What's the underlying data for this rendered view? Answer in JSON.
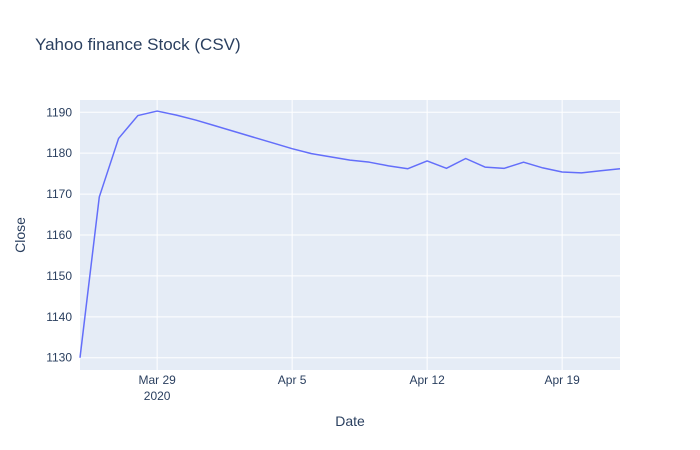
{
  "chart_data": {
    "type": "line",
    "title": "Yahoo finance Stock (CSV)",
    "xlabel": "Date",
    "ylabel": "Close",
    "grid": true,
    "xlim": [
      "2020-03-25",
      "2020-04-22"
    ],
    "ylim": [
      1127,
      1193
    ],
    "x_ticks": [
      {
        "date": "2020-03-29",
        "label": "Mar 29",
        "sublabel": "2020"
      },
      {
        "date": "2020-04-05",
        "label": "Apr 5",
        "sublabel": ""
      },
      {
        "date": "2020-04-12",
        "label": "Apr 12",
        "sublabel": ""
      },
      {
        "date": "2020-04-19",
        "label": "Apr 19",
        "sublabel": ""
      }
    ],
    "y_ticks": [
      1130,
      1140,
      1150,
      1160,
      1170,
      1180,
      1190
    ],
    "series": [
      {
        "color": "#636efa",
        "x": [
          "2020-03-25",
          "2020-03-26",
          "2020-03-27",
          "2020-03-28",
          "2020-03-29",
          "2020-03-30",
          "2020-03-31",
          "2020-04-01",
          "2020-04-02",
          "2020-04-03",
          "2020-04-04",
          "2020-04-05",
          "2020-04-06",
          "2020-04-07",
          "2020-04-08",
          "2020-04-09",
          "2020-04-10",
          "2020-04-11",
          "2020-04-12",
          "2020-04-13",
          "2020-04-14",
          "2020-04-15",
          "2020-04-16",
          "2020-04-17",
          "2020-04-18",
          "2020-04-19",
          "2020-04-20",
          "2020-04-21",
          "2020-04-22"
        ],
        "y": [
          1130.0,
          1169.3,
          1183.6,
          1189.2,
          1190.3,
          1189.3,
          1188.1,
          1186.7,
          1185.3,
          1183.9,
          1182.5,
          1181.1,
          1179.9,
          1179.1,
          1178.3,
          1177.8,
          1176.9,
          1176.2,
          1178.1,
          1176.3,
          1178.7,
          1176.6,
          1176.3,
          1177.8,
          1176.4,
          1175.4,
          1175.2,
          1175.7,
          1176.2
        ]
      }
    ],
    "colors": {
      "plot_background": "#e5ecf6",
      "gridline": "#ffffff",
      "text": "#2a3f5f",
      "line": "#636efa"
    }
  }
}
